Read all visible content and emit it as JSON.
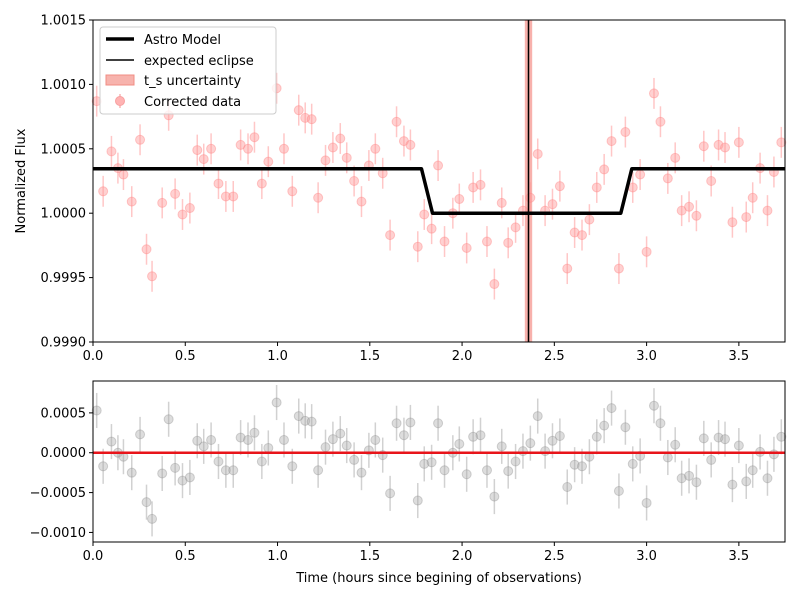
{
  "chart_data": [
    {
      "type": "scatter",
      "ylabel": "Normalized Flux",
      "xlim": [
        0.0,
        3.75
      ],
      "ylim": [
        0.999,
        1.0015
      ],
      "x_ticks": [
        "0.0",
        "0.5",
        "1.0",
        "1.5",
        "2.0",
        "2.5",
        "3.0",
        "3.5"
      ],
      "y_ticks": [
        "0.9990",
        "0.9995",
        "1.0000",
        "1.0005",
        "1.0010",
        "1.0015"
      ],
      "legend": {
        "position": "upper-left",
        "entries": [
          "Astro Model",
          "expected eclipse",
          "t_s uncertainty",
          "Corrected data"
        ]
      },
      "eclipse": {
        "t": 2.36,
        "uncertainty": [
          2.34,
          2.38
        ]
      },
      "model": {
        "baseline": 1.000345,
        "in_eclipse": 1.0,
        "ingress": [
          1.78,
          1.84
        ],
        "egress": [
          2.86,
          2.92
        ]
      },
      "data": {
        "x": [
          0.02,
          0.055,
          0.1,
          0.135,
          0.165,
          0.21,
          0.255,
          0.29,
          0.32,
          0.375,
          0.41,
          0.445,
          0.485,
          0.525,
          0.565,
          0.6,
          0.64,
          0.68,
          0.72,
          0.76,
          0.8,
          0.84,
          0.875,
          0.915,
          0.95,
          0.995,
          1.035,
          1.08,
          1.115,
          1.15,
          1.185,
          1.22,
          1.26,
          1.3,
          1.34,
          1.375,
          1.415,
          1.455,
          1.495,
          1.53,
          1.57,
          1.61,
          1.645,
          1.685,
          1.72,
          1.76,
          1.795,
          1.835,
          1.87,
          1.905,
          1.95,
          1.985,
          2.025,
          2.06,
          2.1,
          2.135,
          2.175,
          2.215,
          2.25,
          2.29,
          2.33,
          2.37,
          2.41,
          2.45,
          2.49,
          2.53,
          2.57,
          2.61,
          2.65,
          2.69,
          2.73,
          2.77,
          2.81,
          2.85,
          2.885,
          2.925,
          2.965,
          3.0,
          3.04,
          3.075,
          3.115,
          3.155,
          3.19,
          3.23,
          3.27,
          3.31,
          3.35,
          3.39,
          3.425,
          3.465,
          3.5,
          3.54,
          3.575,
          3.615,
          3.655,
          3.69,
          3.73
        ],
        "y": [
          1.00087,
          1.00017,
          1.00048,
          1.00035,
          1.0003,
          1.00009,
          1.00057,
          0.99972,
          0.99951,
          1.00008,
          1.00076,
          1.00015,
          0.99999,
          1.00004,
          1.00049,
          1.00042,
          1.0005,
          1.00023,
          1.00013,
          1.00013,
          1.00053,
          1.0005,
          1.00059,
          1.00023,
          1.0004,
          1.00097,
          1.0005,
          1.00017,
          1.0008,
          1.00074,
          1.00073,
          1.00012,
          1.00041,
          1.00051,
          1.00058,
          1.00043,
          1.00025,
          1.00009,
          1.00037,
          1.0005,
          1.00031,
          0.99983,
          1.00071,
          1.00056,
          1.00053,
          0.99974,
          0.99999,
          0.99988,
          1.00037,
          0.99978,
          1.0,
          1.00011,
          0.99973,
          1.0002,
          1.00022,
          0.99978,
          0.99945,
          1.00008,
          0.99977,
          0.99989,
          1.00002,
          1.00012,
          1.00046,
          1.00002,
          1.00007,
          1.00021,
          0.99957,
          0.99985,
          0.99983,
          0.99995,
          1.0002,
          1.00034,
          1.00056,
          0.99957,
          1.00063,
          1.0002,
          1.0003,
          0.9997,
          1.00093,
          1.00071,
          1.00027,
          1.00043,
          1.00002,
          1.00005,
          0.99998,
          1.00052,
          1.00025,
          1.00053,
          1.00051,
          0.99993,
          1.00055,
          0.99997,
          1.00012,
          1.00035,
          1.00002,
          1.00032,
          1.00055
        ]
      },
      "err": 0.00012
    },
    {
      "type": "scatter",
      "xlabel": "Time (hours since begining of observations)",
      "xlim": [
        0.0,
        3.75
      ],
      "ylim": [
        -0.00112,
        0.0009
      ],
      "x_ticks": [
        "0.0",
        "0.5",
        "1.0",
        "1.5",
        "2.0",
        "2.5",
        "3.0",
        "3.5"
      ],
      "y_ticks": [
        "−0.0010",
        "−0.0005",
        "0.0000",
        "0.0005"
      ],
      "zero_line": 0.0,
      "residuals": [
        0.00053,
        -0.00017,
        0.00014,
        0.0,
        -5e-05,
        -0.00025,
        0.00023,
        -0.00062,
        -0.00083,
        -0.00026,
        0.00042,
        -0.00019,
        -0.00035,
        -0.00031,
        0.00015,
        8e-05,
        0.00016,
        -0.00011,
        -0.00022,
        -0.00022,
        0.00019,
        0.00016,
        0.00025,
        -0.00011,
        6e-05,
        0.00063,
        0.00016,
        -0.00017,
        0.00046,
        0.0004,
        0.00039,
        -0.00022,
        7e-05,
        0.00017,
        0.00024,
        9e-05,
        -9e-05,
        -0.00025,
        3e-05,
        0.00016,
        -3e-05,
        -0.00051,
        0.00037,
        0.00022,
        0.00038,
        -0.0006,
        -0.00014,
        -0.00012,
        0.00037,
        -0.00022,
        0.0,
        0.00011,
        -0.00027,
        0.0002,
        0.00022,
        -0.00022,
        -0.00055,
        8e-05,
        -0.00023,
        -0.00011,
        2e-05,
        0.00012,
        0.00046,
        2e-05,
        0.00015,
        0.00021,
        -0.00043,
        -0.00015,
        -0.00017,
        -5e-05,
        0.0002,
        0.00034,
        0.00056,
        -0.00048,
        0.00032,
        -0.00014,
        -4e-05,
        -0.00063,
        0.00059,
        0.00037,
        -6e-05,
        0.0001,
        -0.00032,
        -0.00029,
        -0.00037,
        0.00018,
        -9e-05,
        0.00019,
        0.00017,
        -0.0004,
        9e-05,
        -0.00036,
        -0.00022,
        1e-05,
        -0.00032,
        -2e-05,
        0.0002
      ],
      "err": 0.00022
    }
  ]
}
